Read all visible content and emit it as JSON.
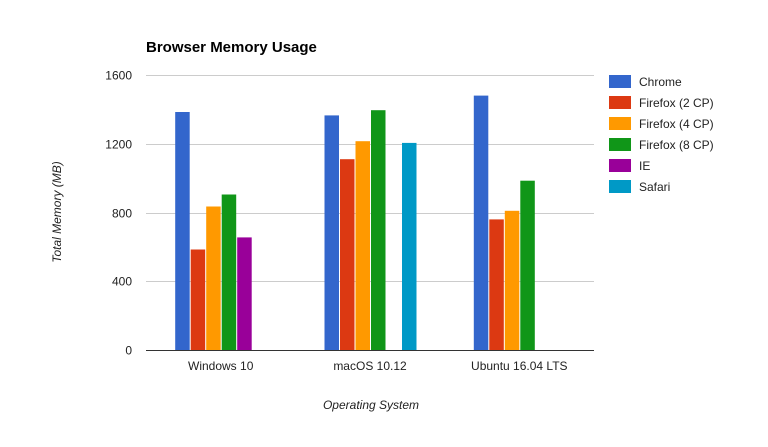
{
  "chart_data": {
    "type": "bar",
    "title": "Browser Memory Usage",
    "xlabel": "Operating System",
    "ylabel": "Total Memory (MB)",
    "ylim": [
      0,
      1600
    ],
    "yticks": [
      0,
      400,
      800,
      1200,
      1600
    ],
    "grid": true,
    "legend_position": "right",
    "categories": [
      "Windows 10",
      "macOS 10.12",
      "Ubuntu 16.04 LTS"
    ],
    "series": [
      {
        "name": "Chrome",
        "color": "#3366cc",
        "values": [
          1385,
          1365,
          1480
        ]
      },
      {
        "name": "Firefox (2 CP)",
        "color": "#dc3912",
        "values": [
          585,
          1110,
          760
        ]
      },
      {
        "name": "Firefox (4 CP)",
        "color": "#ff9900",
        "values": [
          835,
          1215,
          810
        ]
      },
      {
        "name": "Firefox (8 CP)",
        "color": "#109618",
        "values": [
          905,
          1395,
          985
        ]
      },
      {
        "name": "IE",
        "color": "#990099",
        "values": [
          655,
          null,
          null
        ]
      },
      {
        "name": "Safari",
        "color": "#0099c6",
        "values": [
          null,
          1205,
          null
        ]
      }
    ]
  }
}
